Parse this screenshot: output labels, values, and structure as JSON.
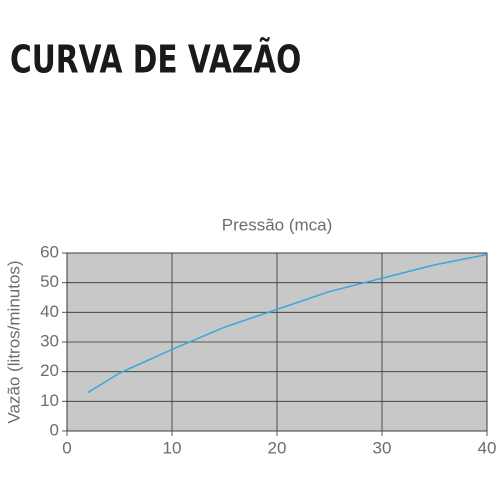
{
  "chart_data": {
    "type": "line",
    "title": "CURVA DE VAZÃO",
    "x_label": "Pressão (mca)",
    "y_label": "Vazão (litros/minutos)",
    "x": [
      2,
      5,
      10,
      15,
      20,
      25,
      30,
      35,
      40
    ],
    "values": [
      13,
      19.5,
      27.5,
      35,
      41,
      47,
      51.5,
      56,
      59.5
    ],
    "color": "#3aa8d8",
    "xlim": [
      0,
      40
    ],
    "xticks": [
      0,
      10,
      20,
      30,
      40
    ],
    "ylim": [
      0,
      60
    ],
    "yticks": [
      0,
      10,
      20,
      30,
      40,
      50,
      60
    ],
    "grid": true
  }
}
